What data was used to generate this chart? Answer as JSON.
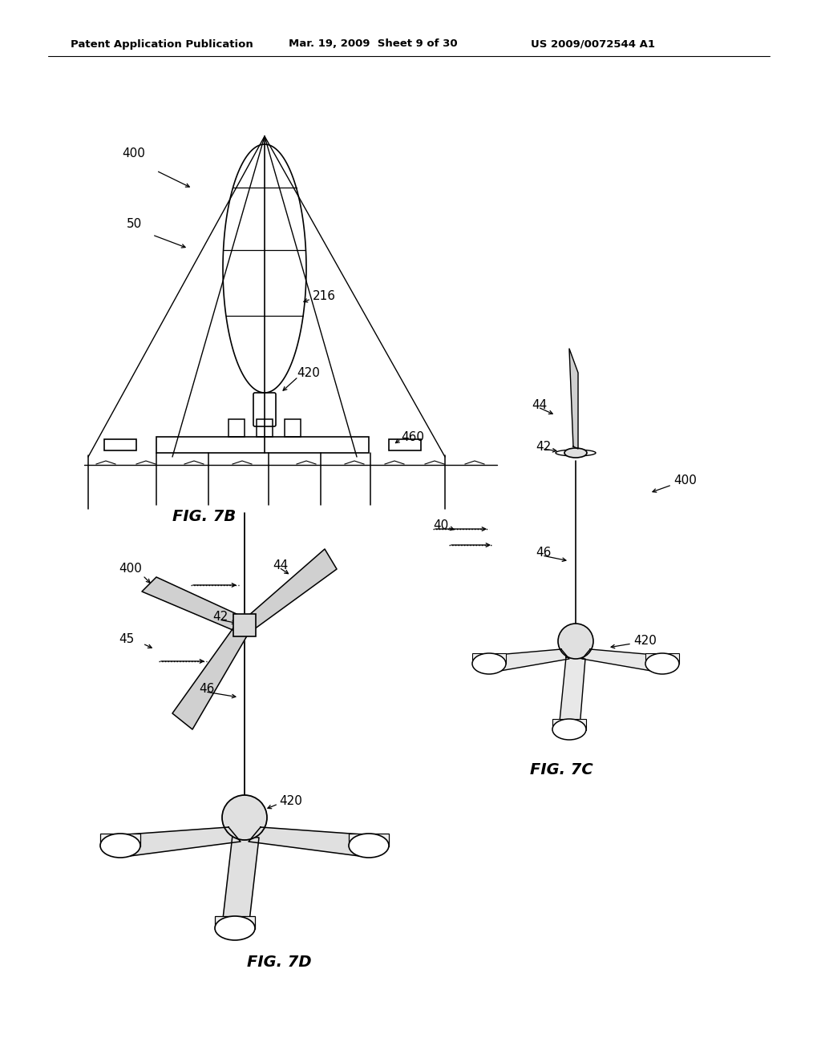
{
  "bg_color": "#ffffff",
  "line_color": "#000000",
  "lw": 1.3,
  "fs": 10,
  "fig7b_label": "FIG. 7B",
  "fig7c_label": "FIG. 7C",
  "fig7d_label": "FIG. 7D",
  "header1": "Patent Application Publication",
  "header2": "Mar. 19, 2009  Sheet 9 of 30",
  "header3": "US 2009/0072544 A1"
}
